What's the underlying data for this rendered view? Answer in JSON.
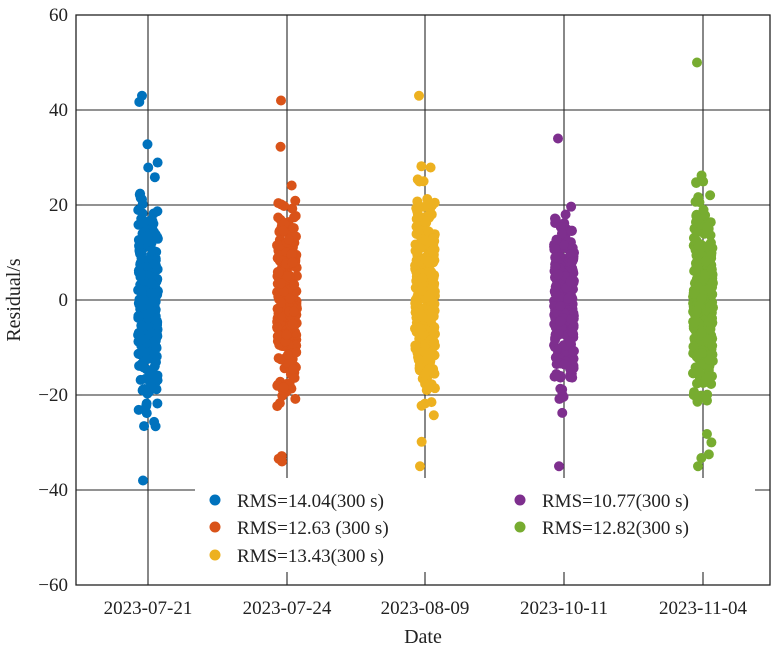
{
  "chart_data": {
    "type": "scatter",
    "title": "",
    "xlabel": "Date",
    "ylabel": "Residual/s",
    "categories": [
      "2023-07-21",
      "2023-07-24",
      "2023-08-09",
      "2023-10-11",
      "2023-11-04"
    ],
    "yticks": [
      "60",
      "40",
      "20",
      "0",
      "−20",
      "−40",
      "−60"
    ],
    "ylim": [
      -60,
      60
    ],
    "grid": true,
    "legend_position": "bottom",
    "legend_columns": 2,
    "point_count_per_series": 300,
    "series": [
      {
        "name": "RMS=14.04(300 s)",
        "category": "2023-07-21",
        "color": "#0072BD",
        "rms": 14.04,
        "min": -38,
        "max": 43
      },
      {
        "name": "RMS=12.63 (300 s)",
        "category": "2023-07-24",
        "color": "#D95319",
        "rms": 12.63,
        "min": -34,
        "max": 42
      },
      {
        "name": "RMS=13.43(300 s)",
        "category": "2023-08-09",
        "color": "#EDB120",
        "rms": 13.43,
        "min": -35,
        "max": 43
      },
      {
        "name": "RMS=10.77(300 s)",
        "category": "2023-10-11",
        "color": "#7E2F8E",
        "rms": 10.77,
        "min": -35,
        "max": 34
      },
      {
        "name": "RMS=12.82(300 s)",
        "category": "2023-11-04",
        "color": "#77AC30",
        "rms": 12.82,
        "min": -35,
        "max": 50
      }
    ]
  }
}
